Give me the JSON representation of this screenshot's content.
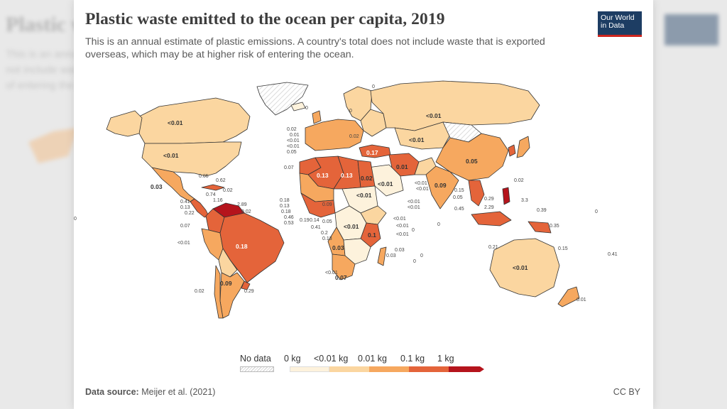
{
  "title": "Plastic waste emitted to the ocean per capita, 2019",
  "subtitle": "This is an annual estimate of plastic emissions. A country's total does not include waste that is exported overseas, which may be at higher risk of entering the ocean.",
  "logo": {
    "line1": "Our World",
    "line2": "in Data"
  },
  "source_label": "Data source:",
  "source_value": "Meijer et al. (2021)",
  "license": "CC BY",
  "colors": {
    "no_data": "#e8e8e8",
    "zero": "#fdf2dc",
    "lt001": "#fbd6a0",
    "b001": "#f6a85f",
    "b01": "#e4643a",
    "b1": "#b5141c",
    "border": "#333333"
  },
  "legend": {
    "no_data": "No data",
    "bins": [
      "0 kg",
      "<0.01 kg",
      "0.01 kg",
      "0.1 kg",
      "1 kg"
    ]
  },
  "map_labels": {
    "canada": "<0.01",
    "usa": "<0.01",
    "russia": "<0.01",
    "kazakhstan": "<0.01",
    "china": "0.05",
    "brazil": "0.18",
    "argentina": "0.09",
    "australia": "<0.01",
    "algeria": "0.13",
    "libya": "0.13",
    "egypt": "0.02",
    "turkey": "0.17",
    "iran": "0.01",
    "india": "0.09",
    "saudi": "<0.01",
    "sudan": "<0.01",
    "drc": "<0.01",
    "tanzania": "0.1",
    "angola": "0.03",
    "south_africa": "0.07",
    "mexico": "0.03"
  },
  "callouts": {
    "americas": [
      "0.05",
      "0.62",
      "0.02",
      "0.74",
      "1.16",
      "2.89",
      "0.02",
      "0.41",
      "0.13",
      "0.22",
      "0.07",
      "<0.01",
      "0.02",
      "0.29",
      "0"
    ],
    "europe": [
      "0",
      "0",
      "0.02",
      "0.01",
      "<0.01",
      "<0.01",
      "0.05",
      "0.07",
      "0.02",
      "0"
    ],
    "africa": [
      "0.18",
      "0.13",
      "0.18",
      "0.46",
      "0.53",
      "0.19",
      "0.14",
      "0.05",
      "0.41",
      "0.2",
      "0.13",
      "0.09",
      "0.03",
      "<0.01",
      "<0.01",
      "<0.01",
      "0",
      "0.03",
      "0",
      "<0.01",
      "0",
      "<0.01"
    ],
    "asia": [
      "<0.01",
      "<0.01",
      "<0.01",
      "0",
      "0.15",
      "0.05",
      "0.45",
      "0.29",
      "2.29",
      "3.3",
      "0.39",
      "0.02",
      "0.21",
      "0.35",
      "0.15",
      "0.41",
      "0",
      "0.01"
    ]
  }
}
